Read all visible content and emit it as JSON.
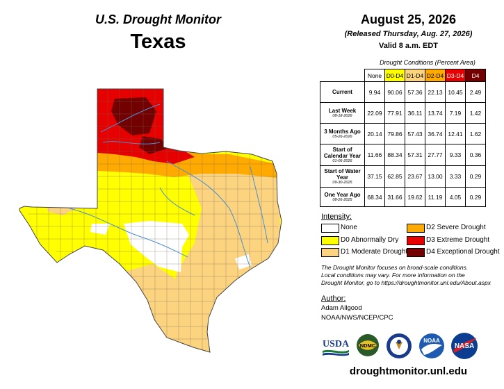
{
  "header": {
    "monitor_title": "U.S. Drought Monitor",
    "state": "Texas",
    "date": "August 25, 2026",
    "released": "(Released Thursday, Aug. 27, 2026)",
    "valid": "Valid 8 a.m. EDT"
  },
  "table": {
    "caption": "Drought Conditions (Percent Area)",
    "columns": [
      {
        "label": "None",
        "color": "#ffffff"
      },
      {
        "label": "D0-D4",
        "color": "#ffff00"
      },
      {
        "label": "D1-D4",
        "color": "#fcd37f"
      },
      {
        "label": "D2-D4",
        "color": "#ffaa00"
      },
      {
        "label": "D3-D4",
        "color": "#e60000"
      },
      {
        "label": "D4",
        "color": "#730000"
      }
    ],
    "rows": [
      {
        "label": "Current",
        "sub": "",
        "values": [
          "9.94",
          "90.06",
          "57.36",
          "22.13",
          "10.45",
          "2.49"
        ]
      },
      {
        "label": "Last Week",
        "sub": "08-18-2026",
        "values": [
          "22.09",
          "77.91",
          "36.11",
          "13.74",
          "7.19",
          "1.42"
        ]
      },
      {
        "label": "3 Months Ago",
        "sub": "05-26-2026",
        "values": [
          "20.14",
          "79.86",
          "57.43",
          "36.74",
          "12.41",
          "1.62"
        ]
      },
      {
        "label": "Start of Calendar Year",
        "sub": "01-06-2026",
        "values": [
          "11.66",
          "88.34",
          "57.31",
          "27.77",
          "9.33",
          "0.36"
        ]
      },
      {
        "label": "Start of Water Year",
        "sub": "09-30-2025",
        "values": [
          "37.15",
          "62.85",
          "23.67",
          "13.00",
          "3.33",
          "0.29"
        ]
      },
      {
        "label": "One Year Ago",
        "sub": "08-26-2025",
        "values": [
          "68.34",
          "31.66",
          "19.62",
          "11.19",
          "4.05",
          "0.29"
        ]
      }
    ]
  },
  "legend": {
    "title": "Intensity:",
    "items": [
      {
        "label": "None",
        "color": "#ffffff"
      },
      {
        "label": "D0 Abnormally Dry",
        "color": "#ffff00"
      },
      {
        "label": "D1 Moderate Drought",
        "color": "#fcd37f"
      },
      {
        "label": "D2 Severe Drought",
        "color": "#ffaa00"
      },
      {
        "label": "D3 Extreme Drought",
        "color": "#e60000"
      },
      {
        "label": "D4 Exceptional Drought",
        "color": "#730000"
      }
    ]
  },
  "note": {
    "line1": "The Drought Monitor focuses on broad-scale conditions.",
    "line2": "Local conditions may vary. For more information on the",
    "line3": "Drought Monitor, go to https://droughtmonitor.unl.edu/About.aspx"
  },
  "author": {
    "title": "Author:",
    "name": "Adam Allgood",
    "org": "NOAA/NWS/NCEP/CPC"
  },
  "logos": {
    "usda": "USDA",
    "ndmc": "NDMC",
    "noaa": "NOAA",
    "nasa": "NASA"
  },
  "footer": {
    "url": "droughtmonitor.unl.edu"
  }
}
